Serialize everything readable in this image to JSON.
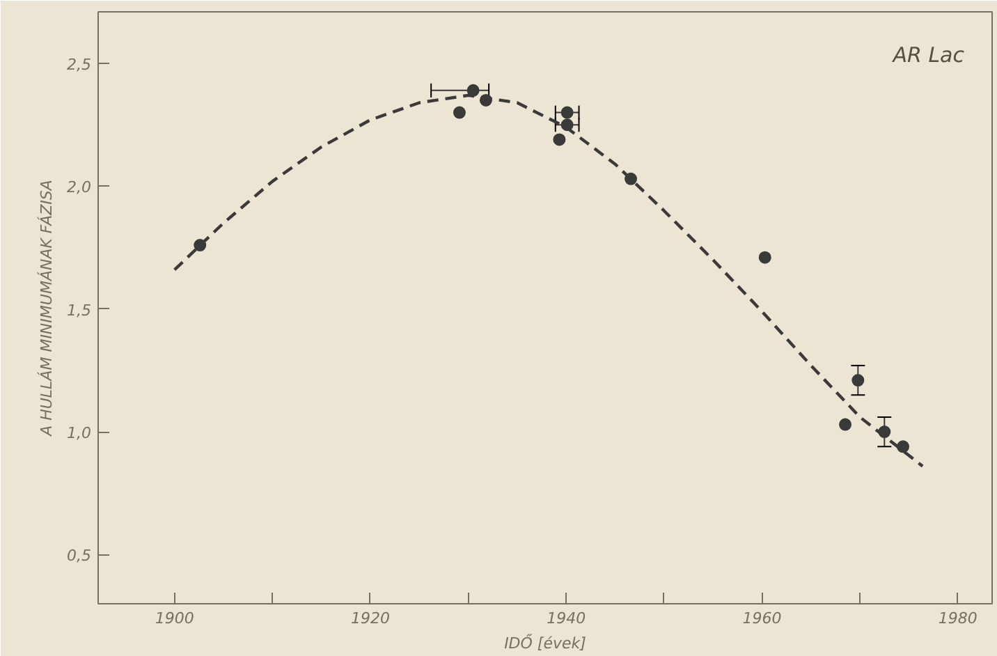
{
  "chart_data": {
    "type": "scatter",
    "xlabel": "IDŐ [évek]",
    "ylabel": "A HULLÁM MINIMUMÁNAK FÁZISA",
    "annotations": [
      "AR Lac"
    ],
    "xlim": [
      1892.2,
      1983.5
    ],
    "ylim": [
      0.3,
      2.71
    ],
    "xticks": [
      {
        "value": 1900,
        "label": "1900"
      },
      {
        "value": 1910,
        "label": null
      },
      {
        "value": 1920,
        "label": "1920"
      },
      {
        "value": 1930,
        "label": null
      },
      {
        "value": 1940,
        "label": "1940"
      },
      {
        "value": 1950,
        "label": null
      },
      {
        "value": 1960,
        "label": "1960"
      },
      {
        "value": 1970,
        "label": null
      },
      {
        "value": 1980,
        "label": "1980"
      }
    ],
    "yticks": [
      {
        "value": 0.5,
        "label": "0,5"
      },
      {
        "value": 1.0,
        "label": "1,0"
      },
      {
        "value": 1.5,
        "label": "1,5"
      },
      {
        "value": 2.0,
        "label": "2,0"
      },
      {
        "value": 2.5,
        "label": "2,5"
      }
    ],
    "grid": false,
    "series": [
      {
        "color": "#3a3a3a",
        "marker": "circle",
        "x": [
          1902.6,
          1929.1,
          1930.5,
          1931.8,
          1939.3,
          1940.1,
          1940.1,
          1946.6,
          1960.3,
          1968.5,
          1969.8,
          1972.5,
          1974.4
        ],
        "values": [
          1.76,
          2.3,
          2.39,
          2.35,
          2.19,
          2.25,
          2.3,
          2.03,
          1.71,
          1.03,
          1.21,
          1.0,
          0.94
        ],
        "errors": [
          null,
          null,
          null,
          null,
          null,
          null,
          null,
          null,
          null,
          null,
          0.06,
          0.06,
          null
        ],
        "xerrors": [
          null,
          null,
          [
            1926.2,
            1932.1
          ],
          null,
          null,
          1.2,
          1.2,
          null,
          null,
          null,
          null,
          null,
          null
        ]
      },
      {
        "type": "line",
        "color": "#3a3a3a",
        "line_style": "dashed",
        "marker": "none",
        "x": [
          1900,
          1905,
          1910,
          1915,
          1920,
          1925,
          1930,
          1935,
          1940,
          1945,
          1950,
          1955,
          1960,
          1965,
          1970,
          1976.4
        ],
        "values": [
          1.66,
          1.85,
          2.02,
          2.16,
          2.27,
          2.34,
          2.37,
          2.34,
          2.24,
          2.09,
          1.9,
          1.7,
          1.49,
          1.27,
          1.06,
          0.86
        ]
      }
    ]
  }
}
